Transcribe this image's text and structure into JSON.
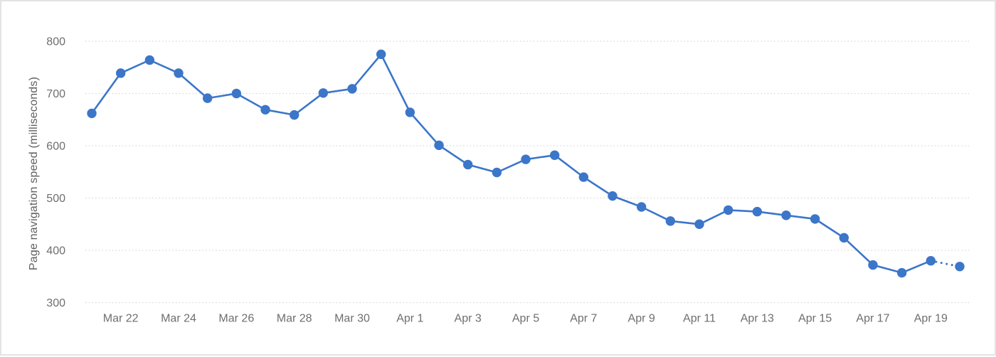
{
  "chart_data": {
    "type": "line",
    "ylabel": "Page navigation speed (milliseconds)",
    "x": [
      "Mar 21",
      "Mar 22",
      "Mar 23",
      "Mar 24",
      "Mar 25",
      "Mar 26",
      "Mar 27",
      "Mar 28",
      "Mar 29",
      "Mar 30",
      "Mar 31",
      "Apr 1",
      "Apr 2",
      "Apr 3",
      "Apr 4",
      "Apr 5",
      "Apr 6",
      "Apr 7",
      "Apr 8",
      "Apr 9",
      "Apr 10",
      "Apr 11",
      "Apr 12",
      "Apr 13",
      "Apr 14",
      "Apr 15",
      "Apr 16",
      "Apr 17",
      "Apr 18",
      "Apr 19",
      "Apr 20"
    ],
    "values": [
      662,
      739,
      764,
      739,
      691,
      700,
      669,
      659,
      701,
      709,
      775,
      664,
      601,
      564,
      549,
      574,
      582,
      540,
      504,
      483,
      456,
      450,
      477,
      474,
      467,
      460,
      424,
      372,
      357,
      380,
      369
    ],
    "x_tick_labels": [
      "Mar 22",
      "Mar 24",
      "Mar 26",
      "Mar 28",
      "Mar 30",
      "Apr 1",
      "Apr 3",
      "Apr 5",
      "Apr 7",
      "Apr 9",
      "Apr 11",
      "Apr 13",
      "Apr 15",
      "Apr 17",
      "Apr 19"
    ],
    "y_ticks": [
      300,
      400,
      500,
      600,
      700,
      800
    ],
    "ylim": [
      300,
      800
    ],
    "grid": "horizontal-dotted",
    "legend": "none",
    "last_segment_style": "dotted",
    "colors": {
      "line": "#3b76c9",
      "marker": "#3b76c9",
      "grid": "#d6d6d6",
      "tick_label": "#6e6e6e",
      "axis_title": "#5f5f5f",
      "border": "#e3e3e3",
      "background": "#ffffff"
    }
  }
}
